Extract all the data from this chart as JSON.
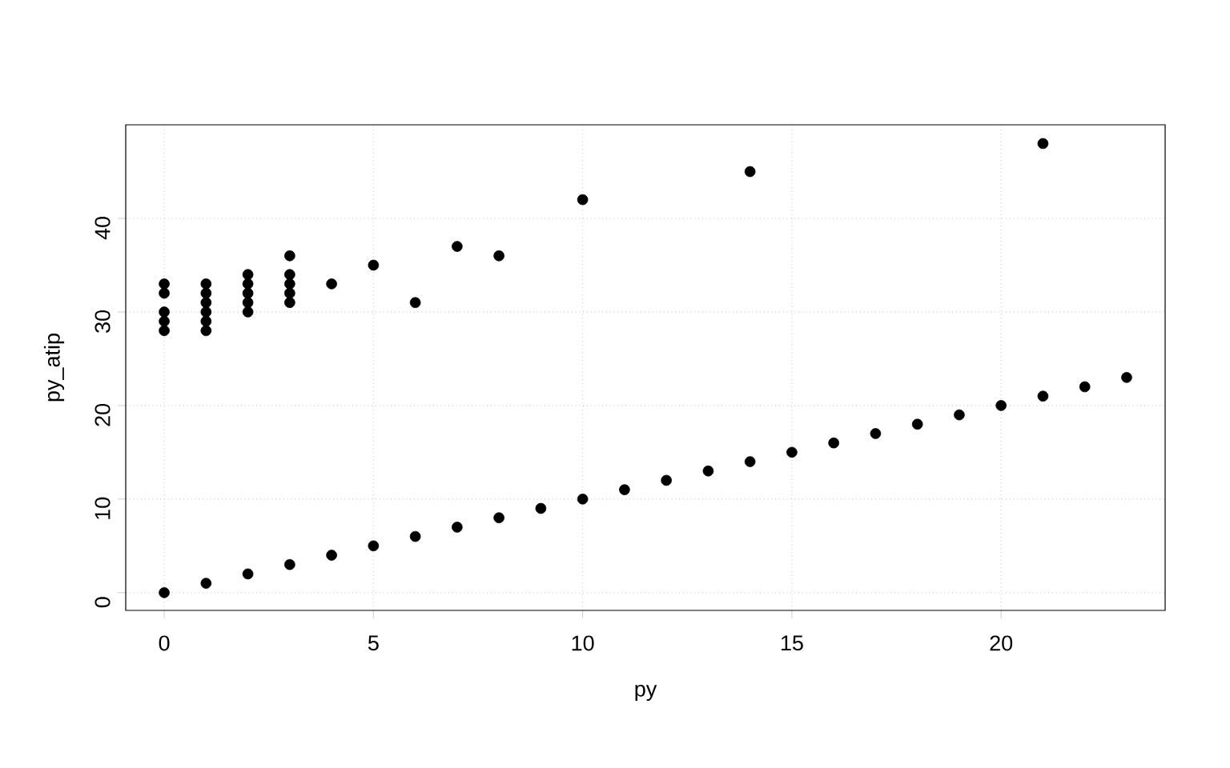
{
  "chart_data": {
    "type": "scatter",
    "xlabel": "py",
    "ylabel": "py_atip",
    "x": [
      0,
      0,
      0,
      0,
      0,
      1,
      1,
      1,
      1,
      1,
      1,
      2,
      2,
      2,
      2,
      2,
      3,
      3,
      3,
      3,
      3,
      4,
      5,
      6,
      7,
      8,
      10,
      14,
      21,
      0,
      1,
      2,
      3,
      4,
      5,
      6,
      7,
      8,
      9,
      10,
      11,
      12,
      13,
      14,
      15,
      16,
      17,
      18,
      19,
      20,
      21,
      22,
      23
    ],
    "values": [
      28,
      29,
      30,
      32,
      33,
      28,
      29,
      30,
      31,
      32,
      33,
      30,
      31,
      32,
      33,
      34,
      31,
      32,
      33,
      34,
      36,
      33,
      35,
      31,
      37,
      36,
      42,
      45,
      48,
      0,
      1,
      2,
      3,
      4,
      5,
      6,
      7,
      8,
      9,
      10,
      11,
      12,
      13,
      14,
      15,
      16,
      17,
      18,
      19,
      20,
      21,
      22,
      23
    ],
    "color": "#000000",
    "marker": "circle",
    "xlim": [
      -0.92,
      23.92
    ],
    "ylim": [
      -1.9,
      50
    ],
    "xticks": [
      0,
      5,
      10,
      15,
      20
    ],
    "yticks": [
      0,
      10,
      20,
      30,
      40
    ],
    "grid": true
  }
}
